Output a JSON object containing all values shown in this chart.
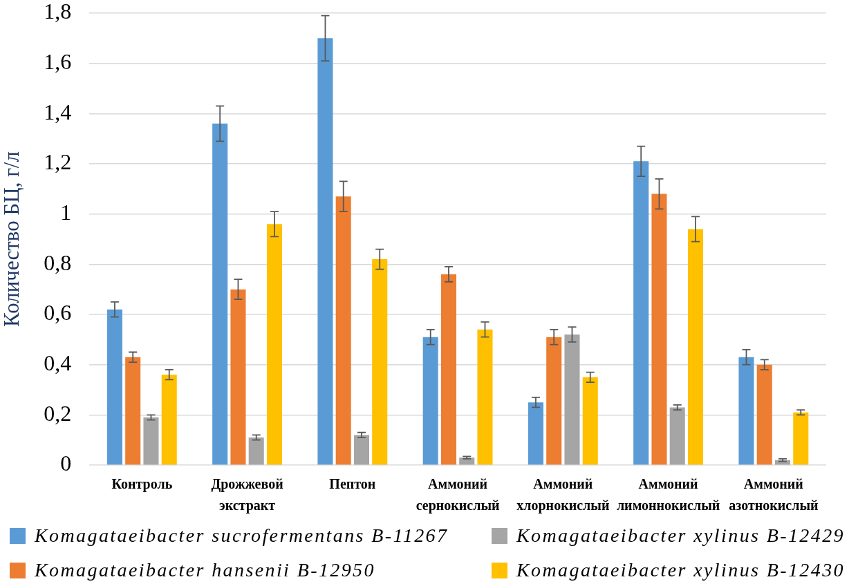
{
  "chart_data": {
    "type": "bar",
    "ylabel": "Количество БЦ, г/л",
    "categories": [
      "Контроль",
      "Дрожжевой экстракт",
      "Пептон",
      "Аммоний сернокислый",
      "Аммоний хлорнокислый",
      "Аммоний лимоннокислый",
      "Аммоний азотнокислый"
    ],
    "series": [
      {
        "name": "Komagataeibacter sucrofermentans B-11267",
        "color": "#5b9bd5",
        "values": [
          0.62,
          1.36,
          1.7,
          0.51,
          0.25,
          1.21,
          0.43
        ],
        "errors": [
          0.03,
          0.07,
          0.09,
          0.03,
          0.02,
          0.06,
          0.03
        ]
      },
      {
        "name": "Komagataeibacter hansenii B-12950",
        "color": "#ed7d31",
        "values": [
          0.43,
          0.7,
          1.07,
          0.76,
          0.51,
          1.08,
          0.4
        ],
        "errors": [
          0.02,
          0.04,
          0.06,
          0.03,
          0.03,
          0.06,
          0.02
        ]
      },
      {
        "name": "Komagataeibacter xylinus B-12429",
        "color": "#a5a5a5",
        "values": [
          0.19,
          0.11,
          0.12,
          0.03,
          0.52,
          0.23,
          0.02
        ],
        "errors": [
          0.01,
          0.01,
          0.01,
          0.005,
          0.03,
          0.01,
          0.005
        ]
      },
      {
        "name": "Komagataeibacter xylinus B-12430",
        "color": "#ffc000",
        "values": [
          0.36,
          0.96,
          0.82,
          0.54,
          0.35,
          0.94,
          0.21
        ],
        "errors": [
          0.02,
          0.05,
          0.04,
          0.03,
          0.02,
          0.05,
          0.01
        ]
      }
    ],
    "ylim": [
      0,
      1.8
    ],
    "yticks": [
      0,
      {
        "value": 0.2,
        "label": "0,2"
      },
      {
        "value": 0.4,
        "label": "0,4"
      },
      {
        "value": 0.6,
        "label": "0,6"
      },
      {
        "value": 0.8,
        "label": "0,8"
      },
      1,
      {
        "value": 1.2,
        "label": "1,2"
      },
      {
        "value": 1.4,
        "label": "1,4"
      },
      {
        "value": 1.6,
        "label": "1,6"
      },
      {
        "value": 1.8,
        "label": "1,8"
      }
    ],
    "grid": "y",
    "legend": "bottom"
  }
}
